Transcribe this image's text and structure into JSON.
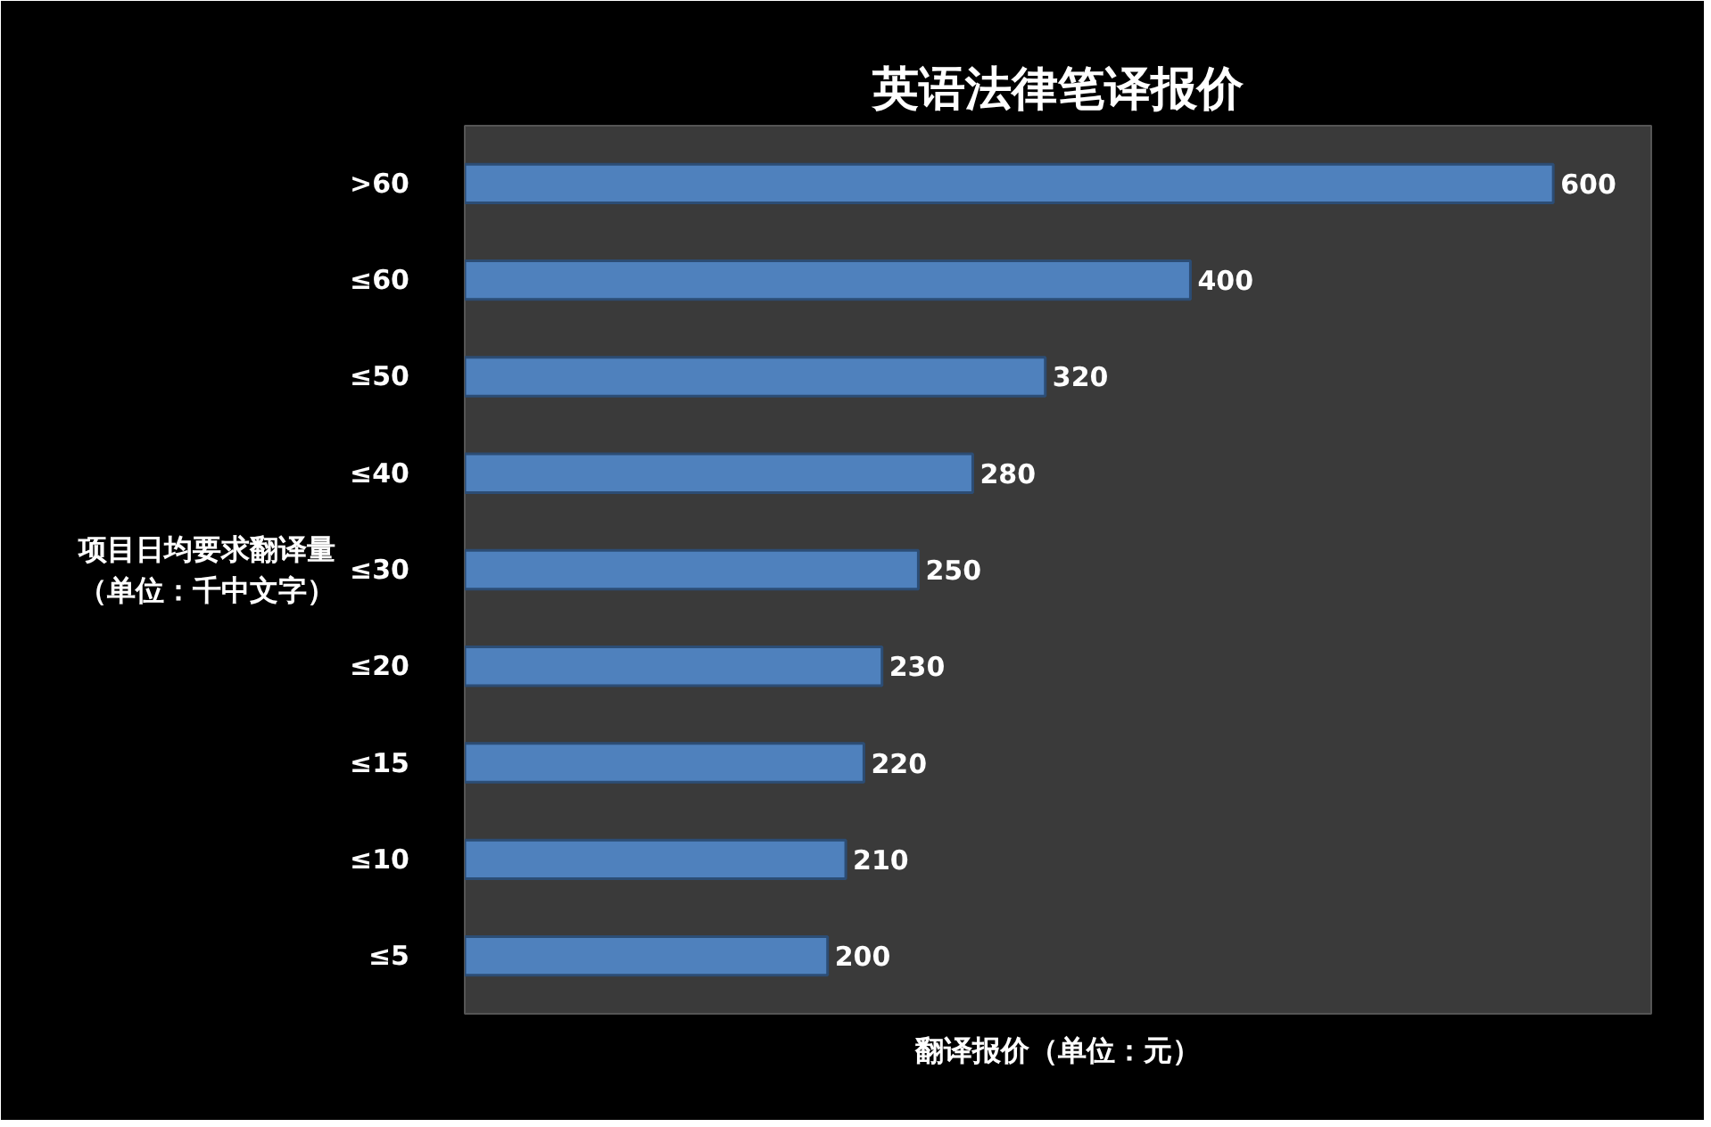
{
  "chart_data": {
    "type": "bar",
    "orientation": "horizontal",
    "title": "英语法律笔译报价",
    "xlabel": "翻译报价（单位：元）",
    "ylabel": "项目日均要求翻译量（单位：千中文字）",
    "categories": [
      ">60",
      "≤60",
      "≤50",
      "≤40",
      "≤30",
      "≤20",
      "≤15",
      "≤10",
      "≤5"
    ],
    "values": [
      600,
      400,
      320,
      280,
      250,
      230,
      220,
      210,
      200
    ],
    "color": "#4f81bd",
    "data_labels": true,
    "grid": false,
    "tick_labels": "y"
  }
}
